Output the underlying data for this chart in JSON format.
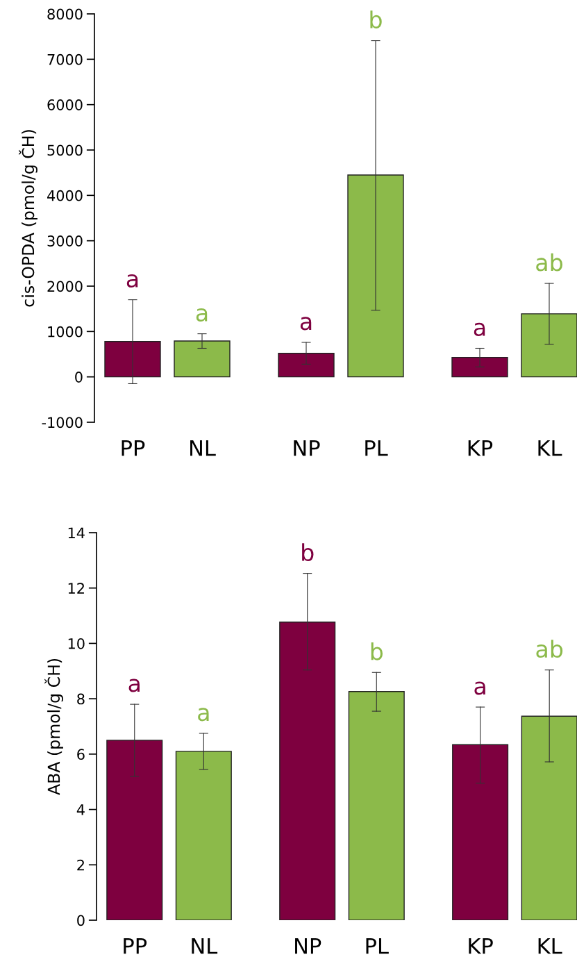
{
  "chart_data": [
    {
      "type": "bar",
      "ylabel": "cis-OPDA (pmol/g ČH)",
      "categories": [
        "PP",
        "NL",
        "NP",
        "PL",
        "KP",
        "KL"
      ],
      "values": [
        780,
        790,
        520,
        4450,
        430,
        1390
      ],
      "errors": [
        [
          -150,
          1700
        ],
        [
          630,
          950
        ],
        [
          280,
          760
        ],
        [
          1470,
          7410
        ],
        [
          220,
          630
        ],
        [
          720,
          2060
        ]
      ],
      "colors": [
        "#7e003f",
        "#8cba4a",
        "#7e003f",
        "#8cba4a",
        "#7e003f",
        "#8cba4a"
      ],
      "ylim": [
        -1000,
        8000
      ],
      "yticks": [
        -1000,
        0,
        1000,
        2000,
        3000,
        4000,
        5000,
        6000,
        7000,
        8000
      ],
      "grid": false,
      "annotations": [
        "a",
        "a",
        "a",
        "b",
        "a",
        "ab"
      ]
    },
    {
      "type": "bar",
      "ylabel": "ABA (pmol/g ČH)",
      "categories": [
        "PP",
        "NL",
        "NP",
        "PL",
        "KP",
        "KL"
      ],
      "values": [
        6.5,
        6.1,
        10.77,
        8.26,
        6.34,
        7.37
      ],
      "errors": [
        [
          5.2,
          7.8
        ],
        [
          5.45,
          6.75
        ],
        [
          9.04,
          12.53
        ],
        [
          7.55,
          8.95
        ],
        [
          4.95,
          7.7
        ],
        [
          5.72,
          9.04
        ]
      ],
      "colors": [
        "#7e003f",
        "#8cba4a",
        "#7e003f",
        "#8cba4a",
        "#7e003f",
        "#8cba4a"
      ],
      "ylim": [
        0,
        14
      ],
      "yticks": [
        0,
        2,
        4,
        6,
        8,
        10,
        12,
        14
      ],
      "grid": false,
      "annotations": [
        "a",
        "a",
        "b",
        "b",
        "a",
        "ab"
      ]
    }
  ]
}
